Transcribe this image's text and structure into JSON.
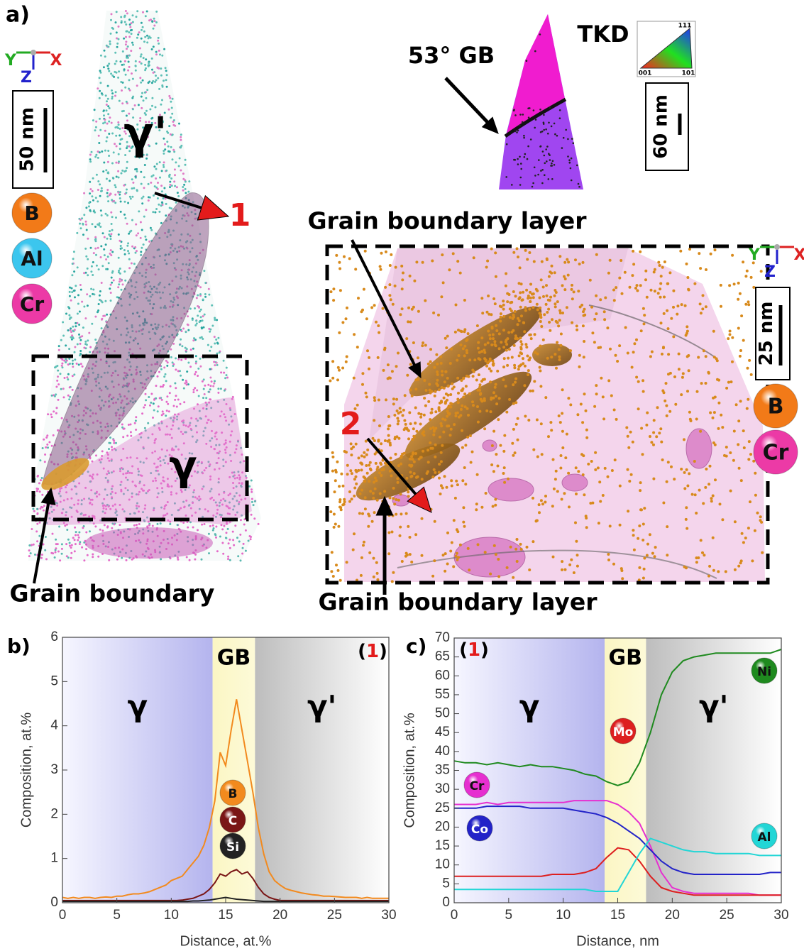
{
  "figure": {
    "panel_label": "a)",
    "left_recon": {
      "axes": {
        "y": "Y",
        "x": "X",
        "z": "Z"
      },
      "scale": "50 nm",
      "elements": [
        {
          "name": "B",
          "color": "#f27a18"
        },
        {
          "name": "Al",
          "color": "#3cc6ee"
        },
        {
          "name": "Cr",
          "color": "#ec3aa6"
        }
      ],
      "phase_top": "γ'",
      "phase_bottom": "γ",
      "marker": "1",
      "caption": "Grain boundary"
    },
    "tkd": {
      "gb_label": "53° GB",
      "title": "TKD",
      "ipf": [
        "111",
        "001",
        "101"
      ],
      "scale": "60 nm"
    },
    "right_recon": {
      "title": "Grain boundary layer",
      "axes": {
        "y": "Y",
        "x": "X",
        "z": "Z"
      },
      "scale": "25 nm",
      "elements": [
        {
          "name": "B",
          "color": "#f27a18"
        },
        {
          "name": "Cr",
          "color": "#ec3aa6"
        }
      ],
      "marker": "2",
      "caption": "Grain boundary layer"
    }
  },
  "chart_data": [
    {
      "type": "line",
      "panel_label": "b)",
      "ref": [
        "(",
        "1",
        ")"
      ],
      "xlabel": "Distance, at.%",
      "ylabel": "Composition, at.%",
      "xlim": [
        0,
        30
      ],
      "xticks": [
        0,
        5,
        10,
        15,
        20,
        25,
        30
      ],
      "ylim": [
        0,
        6
      ],
      "yticks": [
        0,
        1,
        2,
        3,
        4,
        5,
        6
      ],
      "regions": [
        {
          "label": "γ",
          "start": 0,
          "end": 13.8
        },
        {
          "label": "GB",
          "start": 13.8,
          "end": 17.7
        },
        {
          "label": "γ'",
          "start": 17.7,
          "end": 30
        }
      ],
      "x": [
        0,
        0.5,
        1,
        1.5,
        2,
        2.5,
        3,
        3.5,
        4,
        4.5,
        5,
        5.5,
        6,
        6.5,
        7,
        7.5,
        8,
        8.5,
        9,
        9.5,
        10,
        10.5,
        11,
        11.5,
        12,
        12.5,
        13,
        13.5,
        14,
        14.5,
        15,
        15.5,
        16,
        16.5,
        17,
        17.5,
        18,
        18.5,
        19,
        19.5,
        20,
        20.5,
        21,
        21.5,
        22,
        22.5,
        23,
        23.5,
        24,
        24.5,
        25,
        25.5,
        26,
        26.5,
        27,
        27.5,
        28,
        28.5,
        29,
        29.5,
        30
      ],
      "series": [
        {
          "name": "B",
          "color": "#f28a1e",
          "values": [
            0.12,
            0.1,
            0.12,
            0.1,
            0.12,
            0.12,
            0.1,
            0.12,
            0.13,
            0.12,
            0.15,
            0.15,
            0.18,
            0.2,
            0.2,
            0.22,
            0.25,
            0.3,
            0.35,
            0.4,
            0.5,
            0.55,
            0.6,
            0.75,
            0.9,
            1.05,
            1.3,
            1.7,
            2.3,
            3.4,
            3.1,
            3.9,
            4.6,
            3.9,
            3.2,
            2.5,
            1.7,
            1.1,
            0.7,
            0.5,
            0.4,
            0.32,
            0.28,
            0.25,
            0.22,
            0.2,
            0.18,
            0.17,
            0.15,
            0.15,
            0.14,
            0.13,
            0.12,
            0.12,
            0.12,
            0.1,
            0.12,
            0.1,
            0.1,
            0.1,
            0.1
          ]
        },
        {
          "name": "C",
          "color": "#7a1616",
          "values": [
            0.05,
            0.05,
            0.05,
            0.05,
            0.05,
            0.05,
            0.05,
            0.05,
            0.05,
            0.05,
            0.05,
            0.05,
            0.05,
            0.05,
            0.05,
            0.05,
            0.05,
            0.05,
            0.05,
            0.05,
            0.05,
            0.05,
            0.06,
            0.08,
            0.1,
            0.15,
            0.2,
            0.3,
            0.45,
            0.65,
            0.6,
            0.7,
            0.75,
            0.65,
            0.7,
            0.55,
            0.35,
            0.2,
            0.12,
            0.08,
            0.05,
            0.05,
            0.05,
            0.05,
            0.05,
            0.05,
            0.05,
            0.05,
            0.05,
            0.05,
            0.05,
            0.05,
            0.05,
            0.05,
            0.05,
            0.05,
            0.05,
            0.05,
            0.05,
            0.05,
            0.05
          ]
        },
        {
          "name": "Si",
          "color": "#222222",
          "values": [
            0.03,
            0.03,
            0.03,
            0.03,
            0.03,
            0.03,
            0.03,
            0.03,
            0.03,
            0.03,
            0.03,
            0.03,
            0.03,
            0.03,
            0.03,
            0.03,
            0.03,
            0.03,
            0.03,
            0.03,
            0.03,
            0.03,
            0.03,
            0.03,
            0.04,
            0.04,
            0.05,
            0.06,
            0.08,
            0.1,
            0.12,
            0.1,
            0.08,
            0.07,
            0.06,
            0.05,
            0.04,
            0.03,
            0.03,
            0.03,
            0.03,
            0.03,
            0.03,
            0.03,
            0.03,
            0.03,
            0.03,
            0.03,
            0.03,
            0.03,
            0.03,
            0.03,
            0.03,
            0.03,
            0.03,
            0.03,
            0.03,
            0.03,
            0.03,
            0.03,
            0.03
          ]
        }
      ]
    },
    {
      "type": "line",
      "panel_label": "c)",
      "ref": [
        "(",
        "1",
        ")"
      ],
      "xlabel": "Distance, nm",
      "ylabel": "Composition, at.%",
      "xlim": [
        0,
        30
      ],
      "xticks": [
        0,
        5,
        10,
        15,
        20,
        25,
        30
      ],
      "ylim": [
        0,
        70
      ],
      "yticks": [
        0,
        5,
        10,
        15,
        20,
        25,
        30,
        35,
        40,
        45,
        50,
        55,
        60,
        65,
        70
      ],
      "regions": [
        {
          "label": "γ",
          "start": 0,
          "end": 13.8
        },
        {
          "label": "GB",
          "start": 13.8,
          "end": 17.6
        },
        {
          "label": "γ'",
          "start": 17.6,
          "end": 30
        }
      ],
      "x": [
        0,
        1,
        2,
        3,
        4,
        5,
        6,
        7,
        8,
        9,
        10,
        11,
        12,
        13,
        14,
        15,
        16,
        17,
        18,
        19,
        20,
        21,
        22,
        23,
        24,
        25,
        26,
        27,
        28,
        29,
        30
      ],
      "series": [
        {
          "name": "Ni",
          "color": "#1f8a1f",
          "values": [
            37.5,
            37,
            37,
            36.5,
            37,
            36.5,
            36,
            36.5,
            36,
            36,
            35.5,
            35,
            34,
            33.5,
            32,
            31,
            32,
            37,
            45,
            55,
            61,
            64,
            65,
            65.5,
            66,
            66,
            66,
            66,
            66,
            66,
            67
          ]
        },
        {
          "name": "Cr",
          "color": "#e62fd0",
          "values": [
            26,
            26,
            26,
            26.5,
            26,
            26.5,
            26.5,
            26.5,
            26.5,
            26.5,
            26.5,
            27,
            27,
            27,
            27,
            26,
            24,
            21,
            15,
            8,
            4,
            3,
            2.5,
            2.5,
            2.5,
            2.5,
            2.5,
            2.5,
            2,
            2,
            2
          ]
        },
        {
          "name": "Co",
          "color": "#2323c8",
          "values": [
            25,
            25,
            25,
            25.5,
            25.5,
            25.5,
            25.5,
            25,
            25,
            25,
            25,
            24.5,
            24,
            23.5,
            22.5,
            21,
            19,
            17,
            14,
            11,
            9,
            8,
            7.5,
            7.5,
            7.5,
            7.5,
            7.5,
            7.5,
            7.5,
            8,
            8
          ]
        },
        {
          "name": "Mo",
          "color": "#dd1f1f",
          "values": [
            7,
            7,
            7,
            7,
            7,
            7,
            7,
            7,
            7,
            7.5,
            7.5,
            7.5,
            8,
            9,
            12,
            14.5,
            14,
            11,
            7,
            4,
            3,
            2.5,
            2,
            2,
            2,
            2,
            2,
            2,
            2,
            2,
            2
          ]
        },
        {
          "name": "Al",
          "color": "#22d6d6",
          "values": [
            3.5,
            3.5,
            3.5,
            3.5,
            3.5,
            3.5,
            3.5,
            3.5,
            3.5,
            3.5,
            3.5,
            3.5,
            3.5,
            3,
            3,
            3,
            8,
            13,
            17,
            16,
            15,
            14,
            13.5,
            13.5,
            13,
            13,
            13,
            13,
            12.5,
            12.5,
            12.5
          ]
        }
      ]
    }
  ]
}
